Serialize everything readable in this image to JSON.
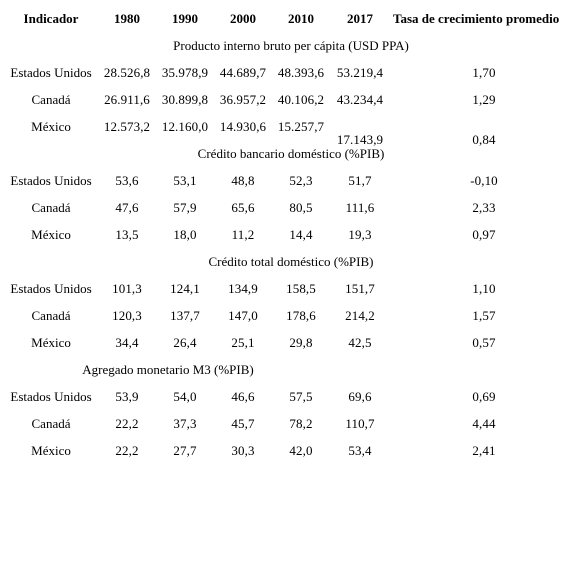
{
  "header": {
    "indicator": "Indicador",
    "years": [
      "1980",
      "1990",
      "2000",
      "2010",
      "2017"
    ],
    "growth": "Tasa de crecimiento promedio"
  },
  "sections": [
    {
      "title": "Producto interno bruto per cápita (USD PPA)",
      "rows": [
        {
          "country": "Estados Unidos",
          "values": [
            "28.526,8",
            "35.978,9",
            "44.689,7",
            "48.393,6",
            "53.219,4"
          ],
          "growth": "1,70"
        },
        {
          "country": "Canadá",
          "values": [
            "26.911,6",
            "30.899,8",
            "36.957,2",
            "40.106,2",
            "43.234,4"
          ],
          "growth": "1,29"
        },
        {
          "country": "México",
          "values": [
            "12.573,2",
            "12.160,0",
            "14.930,6",
            "15.257,7",
            "17.143,9"
          ],
          "growth": "0,84"
        }
      ]
    },
    {
      "title": "Crédito bancario doméstico (%PIB)",
      "rows": [
        {
          "country": "Estados Unidos",
          "values": [
            "53,6",
            "53,1",
            "48,8",
            "52,3",
            "51,7"
          ],
          "growth": "-0,10"
        },
        {
          "country": "Canadá",
          "values": [
            "47,6",
            "57,9",
            "65,6",
            "80,5",
            "111,6"
          ],
          "growth": "2,33"
        },
        {
          "country": "México",
          "values": [
            "13,5",
            "18,0",
            "11,2",
            "14,4",
            "19,3"
          ],
          "growth": "0,97"
        }
      ]
    },
    {
      "title": "Crédito total doméstico (%PIB)",
      "rows": [
        {
          "country": "Estados Unidos",
          "values": [
            "101,3",
            "124,1",
            "134,9",
            "158,5",
            "151,7"
          ],
          "growth": "1,10"
        },
        {
          "country": "Canadá",
          "values": [
            "120,3",
            "137,7",
            "147,0",
            "178,6",
            "214,2"
          ],
          "growth": "1,57"
        },
        {
          "country": "México",
          "values": [
            "34,4",
            "26,4",
            "25,1",
            "29,8",
            "42,5"
          ],
          "growth": "0,57"
        }
      ]
    },
    {
      "title": "Agregado monetario M3 (%PIB)",
      "rows": [
        {
          "country": "Estados Unidos",
          "values": [
            "53,9",
            "54,0",
            "46,6",
            "57,5",
            "69,6"
          ],
          "growth": "0,69"
        },
        {
          "country": "Canadá",
          "values": [
            "22,2",
            "37,3",
            "45,7",
            "78,2",
            "110,7"
          ],
          "growth": "4,44"
        },
        {
          "country": "México",
          "values": [
            "22,2",
            "27,7",
            "30,3",
            "42,0",
            "53,4"
          ],
          "growth": "2,41"
        }
      ]
    }
  ]
}
